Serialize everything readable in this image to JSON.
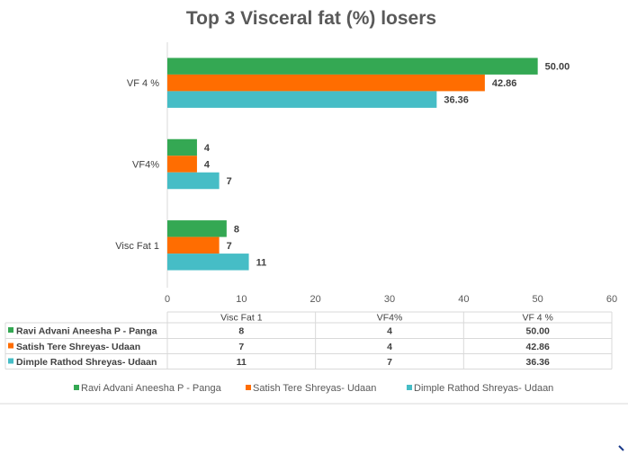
{
  "chart_data": {
    "type": "bar",
    "orientation": "horizontal",
    "title": "Top 3 Visceral fat (%) losers",
    "categories": [
      "Visc Fat 1",
      "VF4%",
      "VF 4 %"
    ],
    "series": [
      {
        "name": "Ravi Advani Aneesha P - Panga",
        "color": "#34A853",
        "values": [
          8,
          4,
          50.0
        ],
        "labels": [
          "8",
          "4",
          "50.00"
        ]
      },
      {
        "name": "Satish Tere  Shreyas- Udaan",
        "color": "#FF6D01",
        "values": [
          7,
          4,
          42.86
        ],
        "labels": [
          "7",
          "4",
          "42.86"
        ]
      },
      {
        "name": "Dimple Rathod Shreyas- Udaan",
        "color": "#46BDC6",
        "values": [
          11,
          7,
          36.36
        ],
        "labels": [
          "11",
          "7",
          "36.36"
        ]
      }
    ],
    "xlim": [
      0,
      60
    ],
    "xticks": [
      "0",
      "10",
      "20",
      "30",
      "40",
      "50",
      "60"
    ],
    "grid": false,
    "data_table": true,
    "legend": "bottom"
  }
}
